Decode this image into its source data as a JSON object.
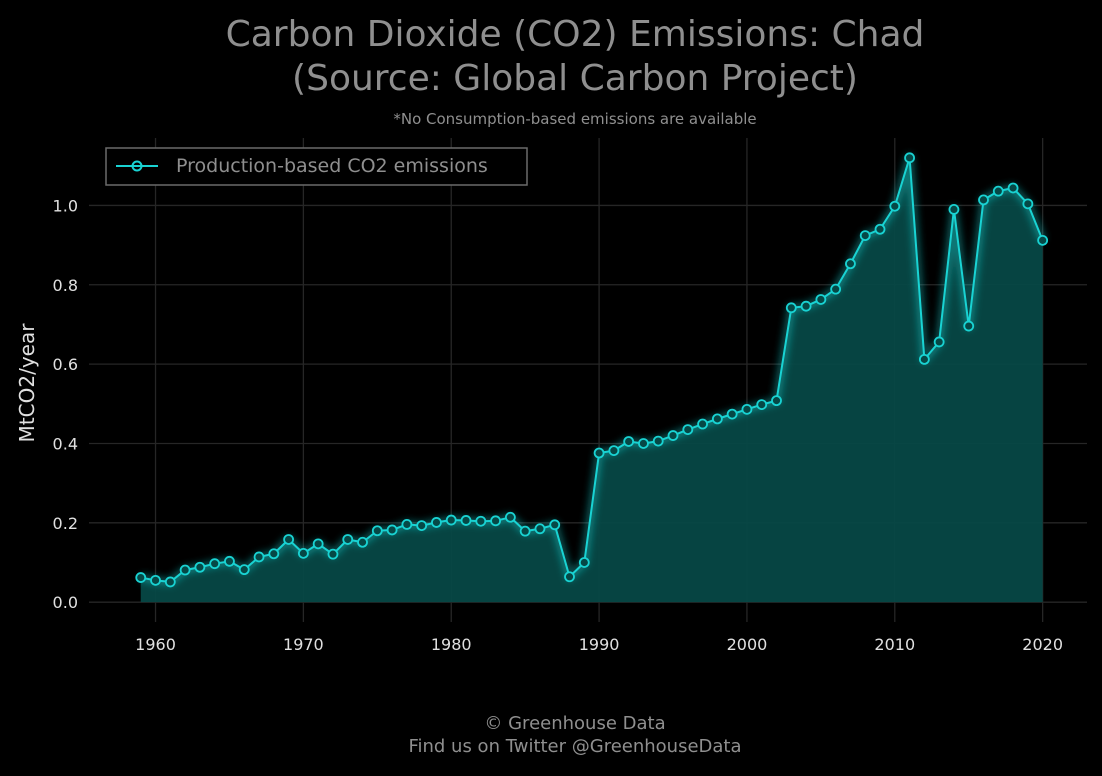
{
  "title_line1": "Carbon Dioxide (CO2) Emissions: Chad",
  "title_line2": "(Source: Global Carbon Project)",
  "subtitle": "*No Consumption-based emissions are available",
  "footer_line1": "© Greenhouse Data",
  "footer_line2": "Find us on Twitter @GreenhouseData",
  "colors": {
    "background": "#000000",
    "line": "#19d3d3",
    "fill": "#064846",
    "grid": "#262626",
    "text": "#e0e0e0",
    "title": "#8f8f8f"
  },
  "chart_data": {
    "type": "area",
    "title": "Carbon Dioxide (CO2) Emissions: Chad (Source: Global Carbon Project)",
    "subtitle": "*No Consumption-based emissions are available",
    "xlabel": "",
    "ylabel": "MtCO2/year",
    "xlim": [
      1955.5,
      2023.0
    ],
    "ylim": [
      -0.05,
      1.17
    ],
    "xticks": [
      1960,
      1970,
      1980,
      1990,
      2000,
      2010,
      2020
    ],
    "yticks": [
      0.0,
      0.2,
      0.4,
      0.6,
      0.8,
      1.0
    ],
    "grid": true,
    "legend_position": "top-left",
    "series": [
      {
        "name": "Production-based CO2 emissions",
        "x": [
          1959,
          1960,
          1961,
          1962,
          1963,
          1964,
          1965,
          1966,
          1967,
          1968,
          1969,
          1970,
          1971,
          1972,
          1973,
          1974,
          1975,
          1976,
          1977,
          1978,
          1979,
          1980,
          1981,
          1982,
          1983,
          1984,
          1985,
          1986,
          1987,
          1988,
          1989,
          1990,
          1991,
          1992,
          1993,
          1994,
          1995,
          1996,
          1997,
          1998,
          1999,
          2000,
          2001,
          2002,
          2003,
          2004,
          2005,
          2006,
          2007,
          2008,
          2009,
          2010,
          2011,
          2012,
          2013,
          2014,
          2015,
          2016,
          2017,
          2018,
          2019,
          2020
        ],
        "values": [
          0.062,
          0.055,
          0.051,
          0.081,
          0.088,
          0.097,
          0.103,
          0.082,
          0.114,
          0.122,
          0.158,
          0.123,
          0.147,
          0.121,
          0.158,
          0.151,
          0.18,
          0.182,
          0.196,
          0.193,
          0.201,
          0.207,
          0.206,
          0.204,
          0.205,
          0.214,
          0.179,
          0.185,
          0.195,
          0.064,
          0.1,
          0.376,
          0.382,
          0.405,
          0.4,
          0.406,
          0.42,
          0.435,
          0.449,
          0.462,
          0.474,
          0.486,
          0.498,
          0.508,
          0.742,
          0.746,
          0.763,
          0.789,
          0.853,
          0.924,
          0.94,
          0.998,
          1.12,
          0.612,
          0.656,
          0.99,
          0.696,
          1.014,
          1.036,
          1.044,
          1.004,
          0.912
        ]
      }
    ]
  }
}
